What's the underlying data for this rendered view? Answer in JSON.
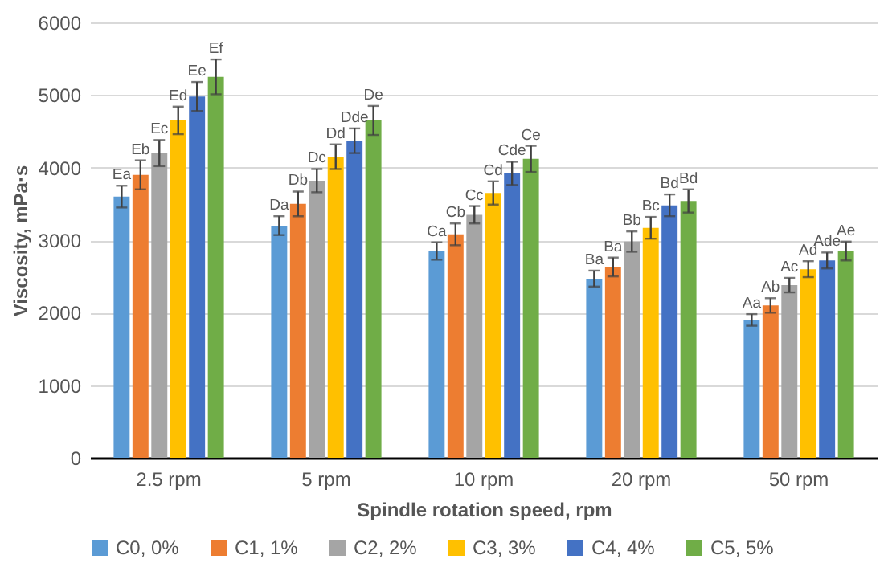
{
  "chart_data": {
    "type": "bar",
    "xlabel": "Spindle rotation speed, rpm",
    "ylabel": "Viscosity, mPa·s",
    "categories": [
      "2.5 rpm",
      "5 rpm",
      "10 rpm",
      "20 rpm",
      "50 rpm"
    ],
    "ylim": [
      0,
      6000
    ],
    "yticks": [
      0,
      1000,
      2000,
      3000,
      4000,
      5000,
      6000
    ],
    "grid": "y",
    "legend": "bottom",
    "series": [
      {
        "name": "C0, 0%",
        "color": "#5b9bd5",
        "values": [
          3600,
          3200,
          2850,
          2470,
          1900
        ],
        "errors": [
          150,
          130,
          120,
          110,
          80
        ],
        "value_labels": [
          "Ea",
          "Da",
          "Ca",
          "Ba",
          "Aa"
        ]
      },
      {
        "name": "C1, 1%",
        "color": "#ed7d31",
        "values": [
          3900,
          3500,
          3080,
          2630,
          2100
        ],
        "errors": [
          200,
          170,
          150,
          130,
          100
        ],
        "value_labels": [
          "Eb",
          "Db",
          "Cb",
          "Ba",
          "Ab"
        ]
      },
      {
        "name": "C2, 2%",
        "color": "#a5a5a5",
        "values": [
          4200,
          3820,
          3350,
          2980,
          2380
        ],
        "errors": [
          180,
          160,
          120,
          140,
          100
        ],
        "value_labels": [
          "Ec",
          "Dc",
          "Cc",
          "Bb",
          "Ac"
        ]
      },
      {
        "name": "C3, 3%",
        "color": "#ffc000",
        "values": [
          4650,
          4150,
          3650,
          3170,
          2600
        ],
        "errors": [
          190,
          170,
          160,
          150,
          110
        ],
        "value_labels": [
          "Ed",
          "Dd",
          "Cd",
          "Bc",
          "Ad"
        ]
      },
      {
        "name": "C4, 4%",
        "color": "#4472c4",
        "values": [
          4980,
          4370,
          3920,
          3480,
          2720
        ],
        "errors": [
          200,
          170,
          160,
          150,
          110
        ],
        "value_labels": [
          "Ee",
          "Dde",
          "Cde",
          "Bd",
          "Ade"
        ]
      },
      {
        "name": "C5, 5%",
        "color": "#70ad47",
        "values": [
          5250,
          4650,
          4120,
          3540,
          2850
        ],
        "errors": [
          240,
          200,
          180,
          160,
          130
        ],
        "value_labels": [
          "Ef",
          "De",
          "Ce",
          "Bd",
          "Ae"
        ]
      }
    ]
  }
}
